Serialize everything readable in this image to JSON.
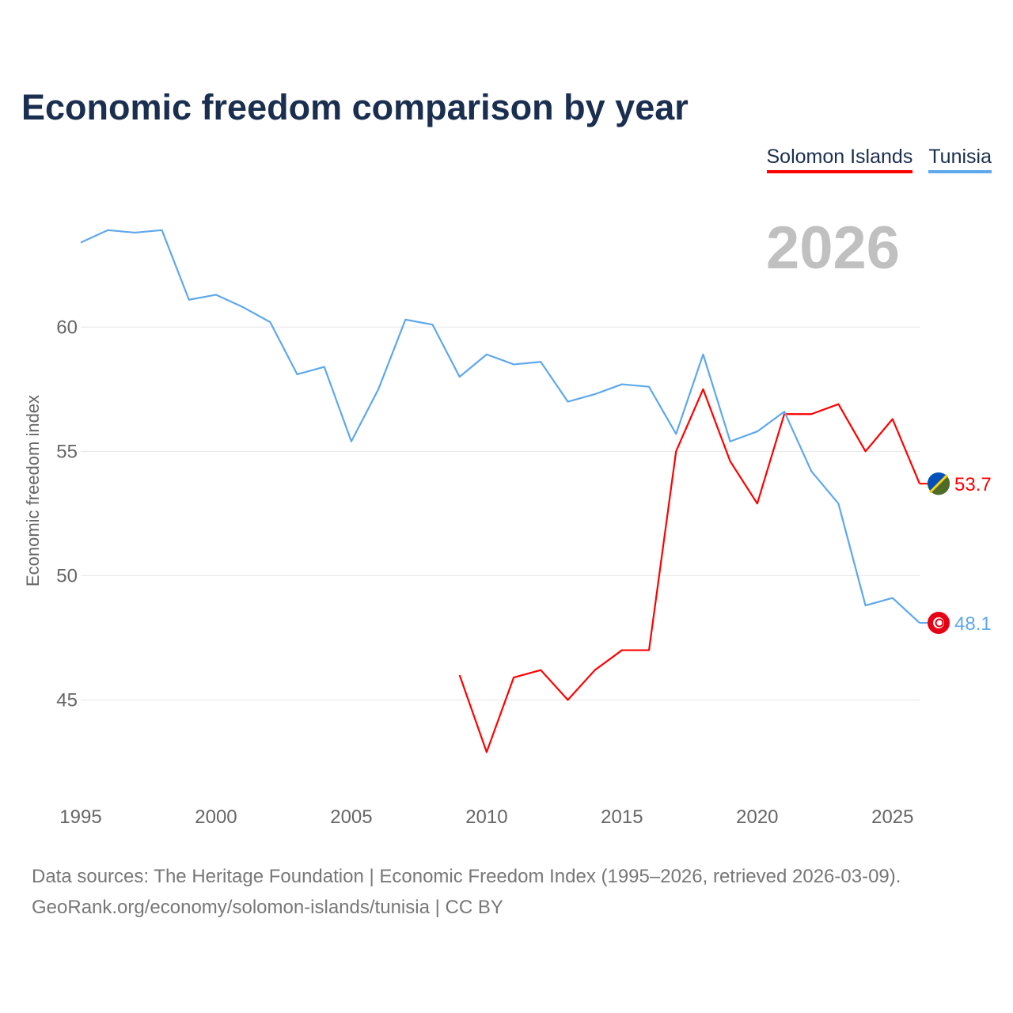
{
  "title": "Economic freedom comparison by year",
  "current_year": "2026",
  "footer": {
    "line1": "Data sources: The Heritage Foundation | Economic Freedom Index (1995–2026, retrieved 2026-03-09).",
    "line2": "GeoRank.org/economy/solomon-islands/tunisia | CC BY"
  },
  "chart_data": {
    "type": "line",
    "title": "Economic freedom comparison by year",
    "xlabel": "",
    "ylabel": "Economic freedom index",
    "xlim": [
      1995,
      2026
    ],
    "ylim": [
      41,
      65.2
    ],
    "xticks": [
      1995,
      2000,
      2005,
      2010,
      2015,
      2020,
      2025
    ],
    "yticks": [
      45,
      50,
      55,
      60
    ],
    "grid": true,
    "legend": "top-right",
    "series": [
      {
        "name": "Solomon Islands",
        "color": "#ff0000",
        "flag": "solomon-islands-flag-icon",
        "end_label": "53.7",
        "x": [
          2009,
          2010,
          2011,
          2012,
          2013,
          2014,
          2015,
          2016,
          2017,
          2018,
          2019,
          2020,
          2021,
          2022,
          2023,
          2024,
          2025,
          2026
        ],
        "values": [
          46.0,
          42.9,
          45.9,
          46.2,
          45.0,
          46.2,
          47.0,
          47.0,
          55.0,
          57.5,
          54.6,
          52.9,
          56.5,
          56.5,
          56.9,
          55.0,
          56.3,
          53.7
        ]
      },
      {
        "name": "Tunisia",
        "color": "#5ea8ec",
        "flag": "tunisia-flag-icon",
        "end_label": "48.1",
        "x": [
          1995,
          1996,
          1997,
          1998,
          1999,
          2000,
          2001,
          2002,
          2003,
          2004,
          2005,
          2006,
          2007,
          2008,
          2009,
          2010,
          2011,
          2012,
          2013,
          2014,
          2015,
          2016,
          2017,
          2018,
          2019,
          2020,
          2021,
          2022,
          2023,
          2024,
          2025,
          2026
        ],
        "values": [
          63.4,
          63.9,
          63.8,
          63.9,
          61.1,
          61.3,
          60.8,
          60.2,
          58.1,
          58.4,
          55.4,
          57.5,
          60.3,
          60.1,
          58.0,
          58.9,
          58.5,
          58.6,
          57.0,
          57.3,
          57.7,
          57.6,
          55.7,
          58.9,
          55.4,
          55.8,
          56.6,
          54.2,
          52.9,
          48.8,
          49.1,
          48.1
        ]
      }
    ]
  }
}
